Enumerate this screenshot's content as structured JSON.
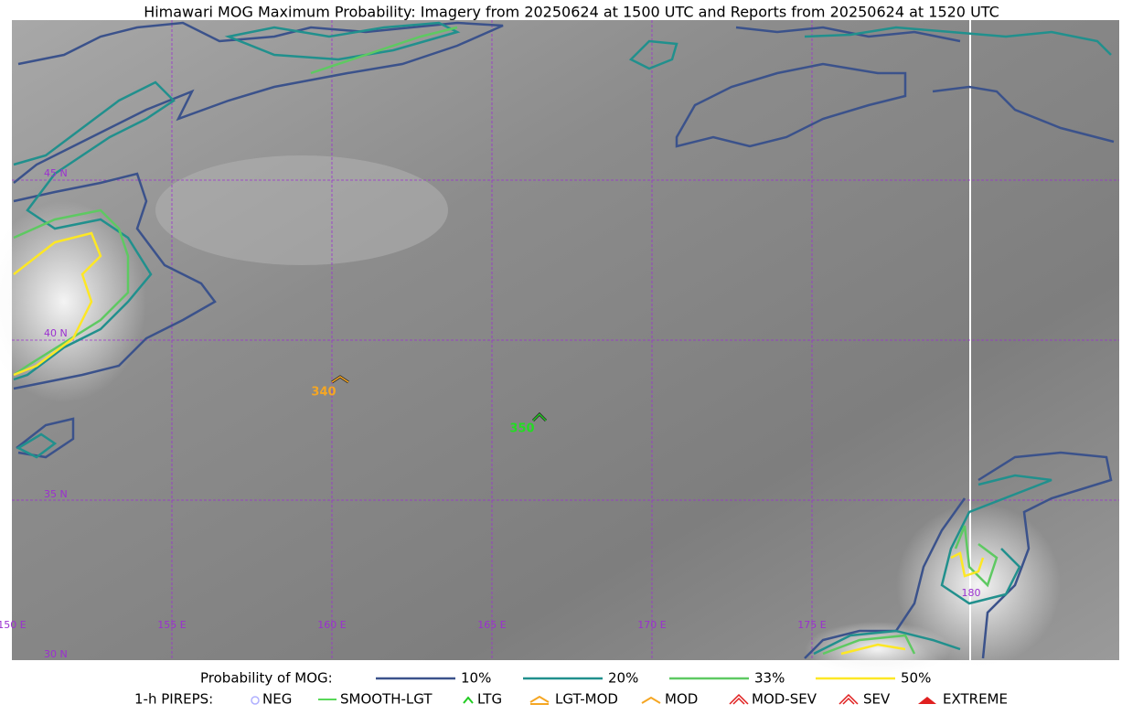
{
  "title": "Himawari MOG Maximum Probability: Imagery from 20250624 at 1500 UTC and Reports from 20250624 at 1520 UTC",
  "map": {
    "lat_labels": [
      "45 N",
      "40 N",
      "35 N",
      "30 N"
    ],
    "lon_labels": [
      "150 E",
      "155 E",
      "160 E",
      "165 E",
      "170 E",
      "175 E",
      "180"
    ],
    "reports": [
      "340",
      "350"
    ]
  },
  "legend": {
    "probability_title": "Probability of MOG:",
    "probability_levels": [
      "10%",
      "20%",
      "33%",
      "50%"
    ],
    "pireps_title": "1-h PIREPS:",
    "pirep_types": [
      "NEG",
      "SMOOTH-LGT",
      "LTG",
      "LGT-MOD",
      "MOD",
      "MOD-SEV",
      "SEV",
      "EXTREME"
    ]
  }
}
